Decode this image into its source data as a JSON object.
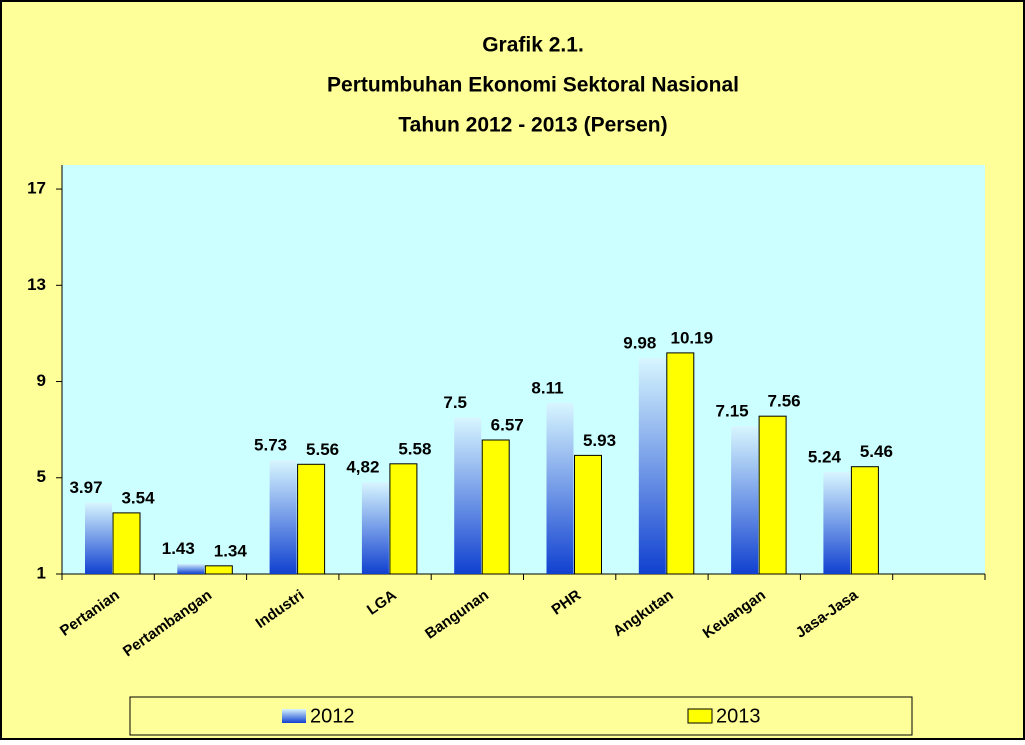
{
  "chart_data": {
    "type": "bar",
    "title": [
      "Grafik 2.1.",
      "Pertumbuhan Ekonomi Sektoral Nasional",
      "Tahun 2012 - 2013  (Persen)"
    ],
    "categories": [
      "Pertanian",
      "Pertambangan",
      "Industri",
      "LGA",
      "Bangunan",
      "PHR",
      "Angkutan",
      "Keuangan",
      "Jasa-Jasa",
      null
    ],
    "series": [
      {
        "name": "2012",
        "color": "#1040d0",
        "values": [
          3.97,
          1.43,
          5.73,
          4.82,
          7.5,
          8.11,
          9.98,
          7.15,
          5.24,
          null
        ],
        "value_labels": [
          "3.97",
          "1.43",
          "5.73",
          "4,82",
          "7.5",
          "8.11",
          "9.98",
          "7.15",
          "5.24",
          null
        ]
      },
      {
        "name": "2013",
        "color": "#ffff00",
        "values": [
          3.54,
          1.34,
          5.56,
          5.58,
          6.57,
          5.93,
          10.19,
          7.56,
          5.46,
          null
        ]
      }
    ],
    "ylim": [
      1,
      18
    ],
    "yticks": [
      1,
      5,
      9,
      13,
      17
    ],
    "grid": false,
    "legend": "bottom"
  }
}
